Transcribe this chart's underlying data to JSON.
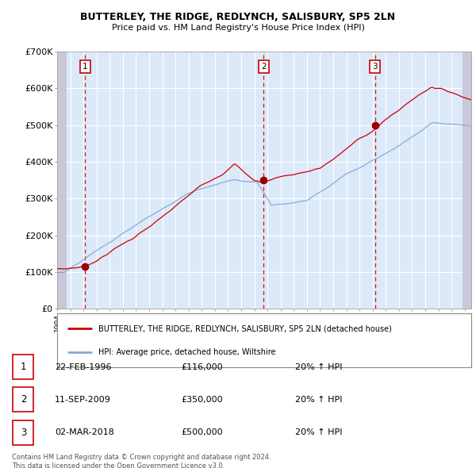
{
  "title": "BUTTERLEY, THE RIDGE, REDLYNCH, SALISBURY, SP5 2LN",
  "subtitle": "Price paid vs. HM Land Registry's House Price Index (HPI)",
  "ylim": [
    0,
    700000
  ],
  "yticks": [
    0,
    100000,
    200000,
    300000,
    400000,
    500000,
    600000,
    700000
  ],
  "ytick_labels": [
    "£0",
    "£100K",
    "£200K",
    "£300K",
    "£400K",
    "£500K",
    "£600K",
    "£700K"
  ],
  "xlim_start": 1994.0,
  "xlim_end": 2025.5,
  "plot_bg_color": "#dce9f8",
  "grid_color": "#ffffff",
  "red_line_color": "#cc0000",
  "blue_line_color": "#88aadd",
  "sale1_date": 1996.13,
  "sale1_price": 116000,
  "sale2_date": 2009.7,
  "sale2_price": 350000,
  "sale3_date": 2018.17,
  "sale3_price": 500000,
  "vline_color": "#cc0000",
  "marker_color": "#990000",
  "legend_label_red": "BUTTERLEY, THE RIDGE, REDLYNCH, SALISBURY, SP5 2LN (detached house)",
  "legend_label_blue": "HPI: Average price, detached house, Wiltshire",
  "table_rows": [
    [
      "1",
      "22-FEB-1996",
      "£116,000",
      "20% ↑ HPI"
    ],
    [
      "2",
      "11-SEP-2009",
      "£350,000",
      "20% ↑ HPI"
    ],
    [
      "3",
      "02-MAR-2018",
      "£500,000",
      "20% ↑ HPI"
    ]
  ],
  "footnote1": "Contains HM Land Registry data © Crown copyright and database right 2024.",
  "footnote2": "This data is licensed under the Open Government Licence v3.0."
}
